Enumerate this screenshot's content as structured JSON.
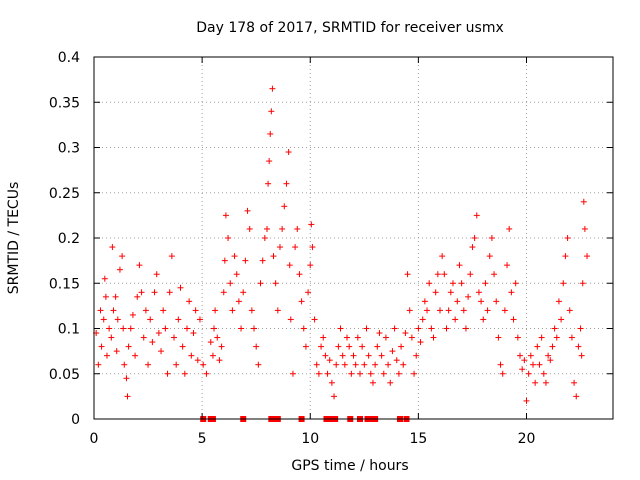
{
  "chart_data": {
    "type": "scatter",
    "title": "Day 178 of 2017, SRMTID for receiver usmx",
    "xlabel": "GPS time / hours",
    "ylabel": "SRMTID / TECUs",
    "xlim": [
      0,
      24
    ],
    "ylim": [
      0,
      0.4
    ],
    "xticks": [
      0,
      5,
      10,
      15,
      20
    ],
    "yticks": [
      0,
      0.05,
      0.1,
      0.15,
      0.2,
      0.25,
      0.3,
      0.35,
      0.4
    ],
    "grid": true,
    "marker": "+",
    "color": "#ff0000",
    "series": [
      {
        "name": "SRMTID",
        "points": [
          [
            0.1,
            0.095
          ],
          [
            0.2,
            0.06
          ],
          [
            0.3,
            0.12
          ],
          [
            0.35,
            0.08
          ],
          [
            0.45,
            0.11
          ],
          [
            0.5,
            0.155
          ],
          [
            0.55,
            0.135
          ],
          [
            0.6,
            0.07
          ],
          [
            0.7,
            0.1
          ],
          [
            0.8,
            0.09
          ],
          [
            0.85,
            0.19
          ],
          [
            0.9,
            0.12
          ],
          [
            1.0,
            0.135
          ],
          [
            1.05,
            0.075
          ],
          [
            1.1,
            0.11
          ],
          [
            1.2,
            0.165
          ],
          [
            1.3,
            0.18
          ],
          [
            1.35,
            0.1
          ],
          [
            1.4,
            0.06
          ],
          [
            1.5,
            0.045
          ],
          [
            1.55,
            0.025
          ],
          [
            1.6,
            0.08
          ],
          [
            1.7,
            0.1
          ],
          [
            1.8,
            0.115
          ],
          [
            1.9,
            0.07
          ],
          [
            2.0,
            0.135
          ],
          [
            2.1,
            0.17
          ],
          [
            2.2,
            0.14
          ],
          [
            2.3,
            0.09
          ],
          [
            2.4,
            0.12
          ],
          [
            2.5,
            0.06
          ],
          [
            2.6,
            0.11
          ],
          [
            2.7,
            0.085
          ],
          [
            2.8,
            0.14
          ],
          [
            2.9,
            0.16
          ],
          [
            3.0,
            0.095
          ],
          [
            3.1,
            0.075
          ],
          [
            3.2,
            0.12
          ],
          [
            3.3,
            0.1
          ],
          [
            3.4,
            0.05
          ],
          [
            3.5,
            0.14
          ],
          [
            3.6,
            0.18
          ],
          [
            3.7,
            0.09
          ],
          [
            3.8,
            0.06
          ],
          [
            3.9,
            0.11
          ],
          [
            4.0,
            0.145
          ],
          [
            4.1,
            0.08
          ],
          [
            4.2,
            0.05
          ],
          [
            4.3,
            0.1
          ],
          [
            4.4,
            0.13
          ],
          [
            4.5,
            0.07
          ],
          [
            4.6,
            0.095
          ],
          [
            4.7,
            0.12
          ],
          [
            4.8,
            0.065
          ],
          [
            4.9,
            0.11
          ],
          [
            5.05,
            0.06
          ],
          [
            5.2,
            0.05
          ],
          [
            5.4,
            0.085
          ],
          [
            5.5,
            0.07
          ],
          [
            5.55,
            0.1
          ],
          [
            5.6,
            0.12
          ],
          [
            5.7,
            0.09
          ],
          [
            5.8,
            0.065
          ],
          [
            5.9,
            0.08
          ],
          [
            6.0,
            0.14
          ],
          [
            6.05,
            0.175
          ],
          [
            6.1,
            0.225
          ],
          [
            6.2,
            0.2
          ],
          [
            6.3,
            0.15
          ],
          [
            6.4,
            0.12
          ],
          [
            6.5,
            0.18
          ],
          [
            6.6,
            0.16
          ],
          [
            6.7,
            0.13
          ],
          [
            6.8,
            0.1
          ],
          [
            6.9,
            0.14
          ],
          [
            7.0,
            0.175
          ],
          [
            7.1,
            0.23
          ],
          [
            7.2,
            0.21
          ],
          [
            7.3,
            0.12
          ],
          [
            7.4,
            0.1
          ],
          [
            7.5,
            0.08
          ],
          [
            7.6,
            0.06
          ],
          [
            7.7,
            0.15
          ],
          [
            7.8,
            0.175
          ],
          [
            7.9,
            0.2
          ],
          [
            8.0,
            0.21
          ],
          [
            8.05,
            0.26
          ],
          [
            8.1,
            0.285
          ],
          [
            8.15,
            0.315
          ],
          [
            8.2,
            0.34
          ],
          [
            8.25,
            0.365
          ],
          [
            8.3,
            0.18
          ],
          [
            8.4,
            0.15
          ],
          [
            8.5,
            0.12
          ],
          [
            8.6,
            0.19
          ],
          [
            8.7,
            0.21
          ],
          [
            8.8,
            0.235
          ],
          [
            8.9,
            0.26
          ],
          [
            9.0,
            0.295
          ],
          [
            9.05,
            0.17
          ],
          [
            9.1,
            0.11
          ],
          [
            9.2,
            0.05
          ],
          [
            9.3,
            0.19
          ],
          [
            9.4,
            0.21
          ],
          [
            9.5,
            0.16
          ],
          [
            9.6,
            0.13
          ],
          [
            9.7,
            0.1
          ],
          [
            9.8,
            0.08
          ],
          [
            9.9,
            0.14
          ],
          [
            10.0,
            0.17
          ],
          [
            10.05,
            0.215
          ],
          [
            10.1,
            0.19
          ],
          [
            10.2,
            0.11
          ],
          [
            10.3,
            0.06
          ],
          [
            10.4,
            0.05
          ],
          [
            10.5,
            0.08
          ],
          [
            10.6,
            0.09
          ],
          [
            10.7,
            0.07
          ],
          [
            10.8,
            0.05
          ],
          [
            10.9,
            0.065
          ],
          [
            11.0,
            0.04
          ],
          [
            11.1,
            0.025
          ],
          [
            11.2,
            0.06
          ],
          [
            11.3,
            0.08
          ],
          [
            11.4,
            0.1
          ],
          [
            11.5,
            0.07
          ],
          [
            11.6,
            0.06
          ],
          [
            11.7,
            0.09
          ],
          [
            11.8,
            0.08
          ],
          [
            11.9,
            0.05
          ],
          [
            12.0,
            0.07
          ],
          [
            12.1,
            0.06
          ],
          [
            12.2,
            0.09
          ],
          [
            12.3,
            0.05
          ],
          [
            12.4,
            0.08
          ],
          [
            12.5,
            0.06
          ],
          [
            12.6,
            0.1
          ],
          [
            12.7,
            0.07
          ],
          [
            12.8,
            0.05
          ],
          [
            12.9,
            0.04
          ],
          [
            13.0,
            0.06
          ],
          [
            13.1,
            0.08
          ],
          [
            13.2,
            0.095
          ],
          [
            13.3,
            0.07
          ],
          [
            13.4,
            0.05
          ],
          [
            13.5,
            0.09
          ],
          [
            13.6,
            0.06
          ],
          [
            13.7,
            0.04
          ],
          [
            13.8,
            0.075
          ],
          [
            13.9,
            0.1
          ],
          [
            14.0,
            0.065
          ],
          [
            14.1,
            0.05
          ],
          [
            14.2,
            0.08
          ],
          [
            14.3,
            0.06
          ],
          [
            14.4,
            0.095
          ],
          [
            14.5,
            0.16
          ],
          [
            14.6,
            0.12
          ],
          [
            14.7,
            0.09
          ],
          [
            14.8,
            0.05
          ],
          [
            14.9,
            0.07
          ],
          [
            15.0,
            0.1
          ],
          [
            15.1,
            0.085
          ],
          [
            15.2,
            0.11
          ],
          [
            15.3,
            0.13
          ],
          [
            15.4,
            0.12
          ],
          [
            15.5,
            0.15
          ],
          [
            15.6,
            0.1
          ],
          [
            15.7,
            0.09
          ],
          [
            15.8,
            0.14
          ],
          [
            15.9,
            0.16
          ],
          [
            16.0,
            0.12
          ],
          [
            16.1,
            0.18
          ],
          [
            16.2,
            0.16
          ],
          [
            16.3,
            0.1
          ],
          [
            16.4,
            0.12
          ],
          [
            16.5,
            0.14
          ],
          [
            16.6,
            0.15
          ],
          [
            16.7,
            0.11
          ],
          [
            16.8,
            0.13
          ],
          [
            16.9,
            0.17
          ],
          [
            17.0,
            0.15
          ],
          [
            17.1,
            0.12
          ],
          [
            17.2,
            0.1
          ],
          [
            17.3,
            0.135
          ],
          [
            17.4,
            0.16
          ],
          [
            17.5,
            0.19
          ],
          [
            17.6,
            0.2
          ],
          [
            17.7,
            0.225
          ],
          [
            17.8,
            0.14
          ],
          [
            17.9,
            0.13
          ],
          [
            18.0,
            0.11
          ],
          [
            18.1,
            0.15
          ],
          [
            18.2,
            0.12
          ],
          [
            18.3,
            0.18
          ],
          [
            18.4,
            0.2
          ],
          [
            18.5,
            0.16
          ],
          [
            18.6,
            0.13
          ],
          [
            18.7,
            0.09
          ],
          [
            18.8,
            0.06
          ],
          [
            18.9,
            0.05
          ],
          [
            19.0,
            0.12
          ],
          [
            19.1,
            0.17
          ],
          [
            19.2,
            0.21
          ],
          [
            19.3,
            0.14
          ],
          [
            19.4,
            0.11
          ],
          [
            19.5,
            0.15
          ],
          [
            19.6,
            0.09
          ],
          [
            19.7,
            0.07
          ],
          [
            19.8,
            0.055
          ],
          [
            19.9,
            0.065
          ],
          [
            20.0,
            0.02
          ],
          [
            20.1,
            0.05
          ],
          [
            20.2,
            0.07
          ],
          [
            20.3,
            0.06
          ],
          [
            20.4,
            0.04
          ],
          [
            20.5,
            0.08
          ],
          [
            20.6,
            0.06
          ],
          [
            20.7,
            0.09
          ],
          [
            20.8,
            0.05
          ],
          [
            20.9,
            0.04
          ],
          [
            21.0,
            0.07
          ],
          [
            21.1,
            0.065
          ],
          [
            21.2,
            0.08
          ],
          [
            21.3,
            0.1
          ],
          [
            21.4,
            0.09
          ],
          [
            21.5,
            0.13
          ],
          [
            21.6,
            0.11
          ],
          [
            21.7,
            0.15
          ],
          [
            21.8,
            0.18
          ],
          [
            21.9,
            0.2
          ],
          [
            22.0,
            0.12
          ],
          [
            22.1,
            0.09
          ],
          [
            22.2,
            0.04
          ],
          [
            22.3,
            0.025
          ],
          [
            22.4,
            0.08
          ],
          [
            22.5,
            0.1
          ],
          [
            22.55,
            0.07
          ],
          [
            22.6,
            0.15
          ],
          [
            22.65,
            0.24
          ],
          [
            22.7,
            0.21
          ],
          [
            22.8,
            0.18
          ]
        ]
      }
    ],
    "zero_markers_x": [
      5.05,
      5.4,
      5.5,
      6.9,
      8.2,
      8.35,
      8.5,
      9.6,
      10.75,
      10.95,
      11.15,
      11.85,
      12.3,
      12.65,
      12.85,
      13.0,
      14.15,
      14.45
    ]
  }
}
